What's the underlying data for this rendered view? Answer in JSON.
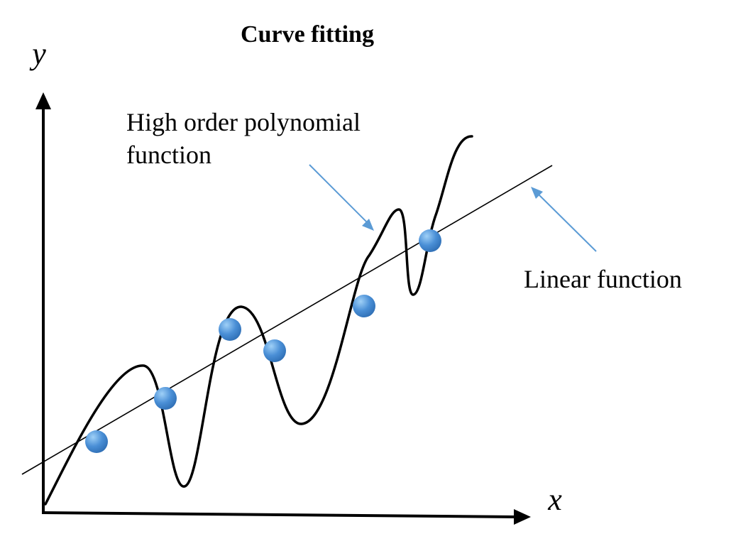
{
  "title": "Curve fitting",
  "axes": {
    "x_label": "x",
    "y_label": "y"
  },
  "annotations": {
    "poly_line1": "High order polynomial",
    "poly_line2": "function",
    "linear": "Linear function"
  },
  "colors": {
    "points": "#4a8fd6",
    "point_highlight": "#8cc0f0",
    "arrows": "#5b9bd5",
    "lines": "#000000"
  }
}
